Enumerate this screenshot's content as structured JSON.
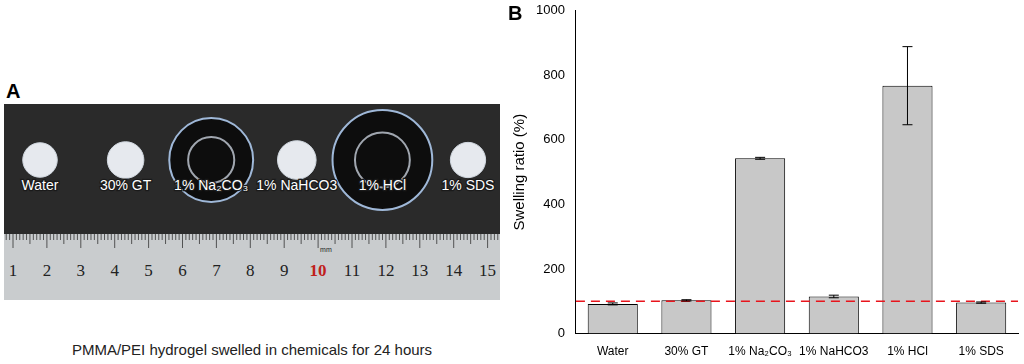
{
  "chart_data": {
    "type": "bar",
    "panel_label": "B",
    "y_label": "Swelling ratio (%)",
    "categories": [
      "Water",
      "30% GT",
      "1% Na₂CO₃",
      "1% NaHCO3",
      "1% HCl",
      "1% SDS"
    ],
    "values": [
      92,
      103,
      543,
      115,
      768,
      96
    ],
    "errors": [
      3,
      2,
      3,
      4,
      121,
      2
    ],
    "color": "#c8c8c8",
    "ylim": [
      0,
      1000
    ],
    "yticks": [
      0,
      200,
      400,
      600,
      800,
      1000
    ],
    "grid": false,
    "reference_line": {
      "value": 100,
      "color": "#e8141c",
      "line_style": "dashed"
    }
  },
  "photo_panel": {
    "panel_label": "A",
    "caption": "PMMA/PEI hydrogel swelled in chemicals for 24 hours",
    "ruler_labels": [
      1,
      2,
      3,
      4,
      5,
      6,
      7,
      8,
      9,
      10,
      11,
      12,
      13,
      14,
      15
    ],
    "ruler_highlight": 10,
    "ruler_unit": "mm"
  }
}
